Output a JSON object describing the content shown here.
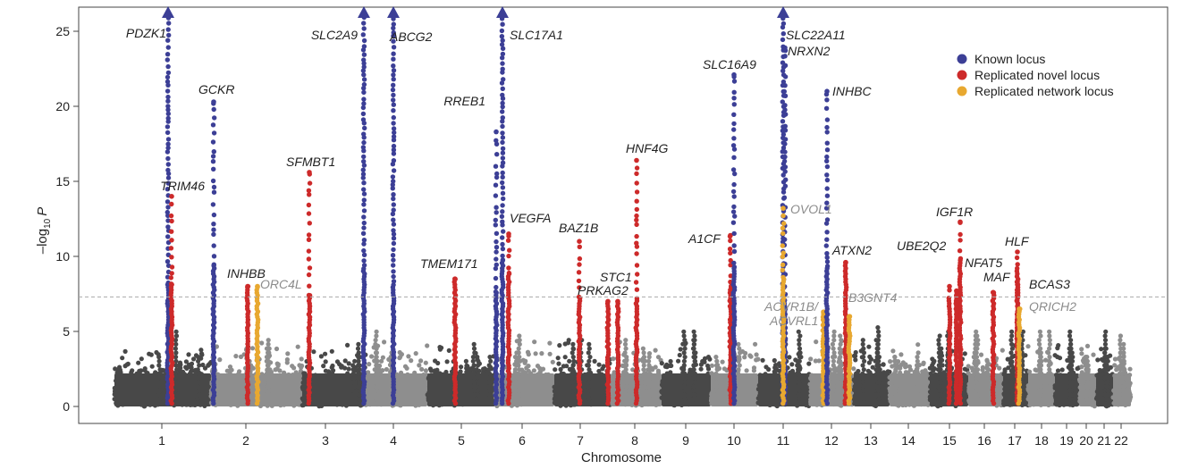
{
  "chart_data": {
    "type": "scatter",
    "subtype": "manhattan",
    "xlabel": "Chromosome",
    "ylabel": "-log10 P",
    "ylabel_main": "–log",
    "ylabel_sub": "10",
    "ylabel_var": "P",
    "ylim": [
      0,
      26
    ],
    "yticks": [
      0,
      5,
      10,
      15,
      20,
      25
    ],
    "significance_threshold": 7.3,
    "chromosomes": [
      "1",
      "2",
      "3",
      "4",
      "5",
      "6",
      "7",
      "8",
      "9",
      "10",
      "11",
      "12",
      "13",
      "14",
      "15",
      "16",
      "17",
      "18",
      "19",
      "20",
      "21",
      "22"
    ],
    "legend": [
      {
        "name": "Known locus",
        "color": "#3c3f96"
      },
      {
        "name": "Replicated novel locus",
        "color": "#cd2a2a"
      },
      {
        "name": "Replicated network locus",
        "color": "#e8a830"
      }
    ],
    "colors": {
      "dark": "#484848",
      "light": "#8e8e8e",
      "known": "#3c3f96",
      "novel": "#cd2a2a",
      "network": "#e8a830",
      "threshold": "#aaaaaa"
    },
    "loci": [
      {
        "gene": "PDZK1",
        "chr": 1,
        "pos": 0.95,
        "p": 26,
        "type": "known",
        "truncated": true
      },
      {
        "gene": "TRIM46",
        "chr": 1,
        "pos": 0.6,
        "p": 14.0,
        "type": "novel"
      },
      {
        "gene": "GCKR",
        "chr": 2,
        "pos": 0.12,
        "p": 20.3,
        "type": "known"
      },
      {
        "gene": "INHBB",
        "chr": 2,
        "pos": 0.45,
        "p": 8.0,
        "type": "novel"
      },
      {
        "gene": "ORC4L",
        "chr": 2,
        "pos": 0.85,
        "p": 8.0,
        "type": "network"
      },
      {
        "gene": "SFMBT1",
        "chr": 3,
        "pos": 0.3,
        "p": 15.6,
        "type": "novel"
      },
      {
        "gene": "SLC2A9",
        "chr": 4,
        "pos": 0.02,
        "p": 26,
        "type": "known",
        "truncated": true
      },
      {
        "gene": "ABCG2",
        "chr": 4,
        "pos": 0.45,
        "p": 26,
        "type": "known",
        "truncated": true
      },
      {
        "gene": "TMEM171",
        "chr": 5,
        "pos": 0.4,
        "p": 8.5,
        "type": "novel"
      },
      {
        "gene": "RREB1",
        "chr": 6,
        "pos": 0.07,
        "p": 18.3,
        "type": "known"
      },
      {
        "gene": "SLC17A1",
        "chr": 6,
        "pos": 0.2,
        "p": 26,
        "type": "known",
        "truncated": true
      },
      {
        "gene": "VEGFA",
        "chr": 6,
        "pos": 0.45,
        "p": 11.5,
        "type": "novel"
      },
      {
        "gene": "BAZ1B",
        "chr": 7,
        "pos": 0.6,
        "p": 11.0,
        "type": "novel"
      },
      {
        "gene": "STC1",
        "chr": 8,
        "pos": 0.1,
        "p": 7.0,
        "type": "novel"
      },
      {
        "gene": "PRKAG2",
        "chr": 7,
        "pos": 0.85,
        "p": 7.0,
        "type": "novel"
      },
      {
        "gene": "HNF4G",
        "chr": 8,
        "pos": 0.5,
        "p": 16.4,
        "type": "novel"
      },
      {
        "gene": "A1CF",
        "chr": 10,
        "pos": 0.1,
        "p": 11.4,
        "type": "novel"
      },
      {
        "gene": "SLC16A9",
        "chr": 10,
        "pos": 0.4,
        "p": 22.1,
        "type": "known"
      },
      {
        "gene": "SLC22A11",
        "chr": 11,
        "pos": 0.5,
        "p": 26,
        "type": "known",
        "truncated": true
      },
      {
        "gene": "NRXN2",
        "chr": 11,
        "pos": 0.55,
        "p": 23.9,
        "type": "known"
      },
      {
        "gene": "OVOL1",
        "chr": 11,
        "pos": 0.55,
        "p": 13.2,
        "type": "network"
      },
      {
        "gene": "ACVR1B/ ACVRL1",
        "chr": 12,
        "pos": 0.42,
        "p": 6.3,
        "type": "network"
      },
      {
        "gene": "INHBC",
        "chr": 12,
        "pos": 0.6,
        "p": 21.0,
        "type": "known"
      },
      {
        "gene": "ATXN2",
        "chr": 12,
        "pos": 0.75,
        "p": 9.6,
        "type": "novel"
      },
      {
        "gene": "B3GNT4",
        "chr": 12,
        "pos": 0.85,
        "p": 6.0,
        "type": "network"
      },
      {
        "gene": "UBE2Q2",
        "chr": 15,
        "pos": 0.25,
        "p": 8.0,
        "type": "novel"
      },
      {
        "gene": "IGF1R",
        "chr": 15,
        "pos": 0.6,
        "p": 12.3,
        "type": "novel"
      },
      {
        "gene": "NFAT5",
        "chr": 16,
        "pos": 0.55,
        "p": 7.7,
        "type": "novel"
      },
      {
        "gene": "MAF",
        "chr": 16,
        "pos": 0.75,
        "p": 7.6,
        "type": "novel"
      },
      {
        "gene": "HLF",
        "chr": 17,
        "pos": 0.55,
        "p": 10.3,
        "type": "novel"
      },
      {
        "gene": "BCAS3",
        "chr": 17,
        "pos": 0.75,
        "p": 8.3,
        "type": "novel"
      },
      {
        "gene": "QRICH2",
        "chr": 17,
        "pos": 0.9,
        "p": 6.5,
        "type": "network"
      }
    ]
  }
}
